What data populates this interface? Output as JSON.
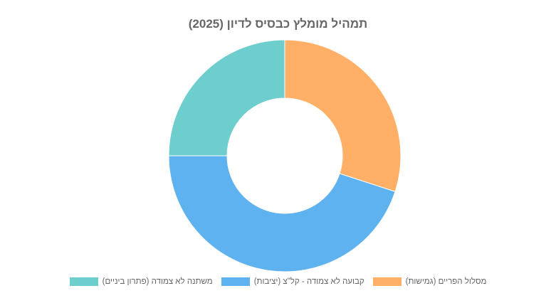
{
  "chart_data": {
    "type": "pie",
    "title": "תמהיל מומלץ כבסיס לדיון (2025)",
    "variant": "doughnut",
    "labels": [
      "מסלול הפריים (גמישות)",
      "קבועה לא צמודה - קל\"צ (יציבות)",
      "משתנה לא צמודה (פתרון ביניים)"
    ],
    "values": [
      30,
      45,
      25
    ],
    "colors": [
      "#ffb066",
      "#5db2ef",
      "#6ecece"
    ],
    "legend_position": "bottom",
    "start_angle": "top",
    "direction": "clockwise"
  }
}
